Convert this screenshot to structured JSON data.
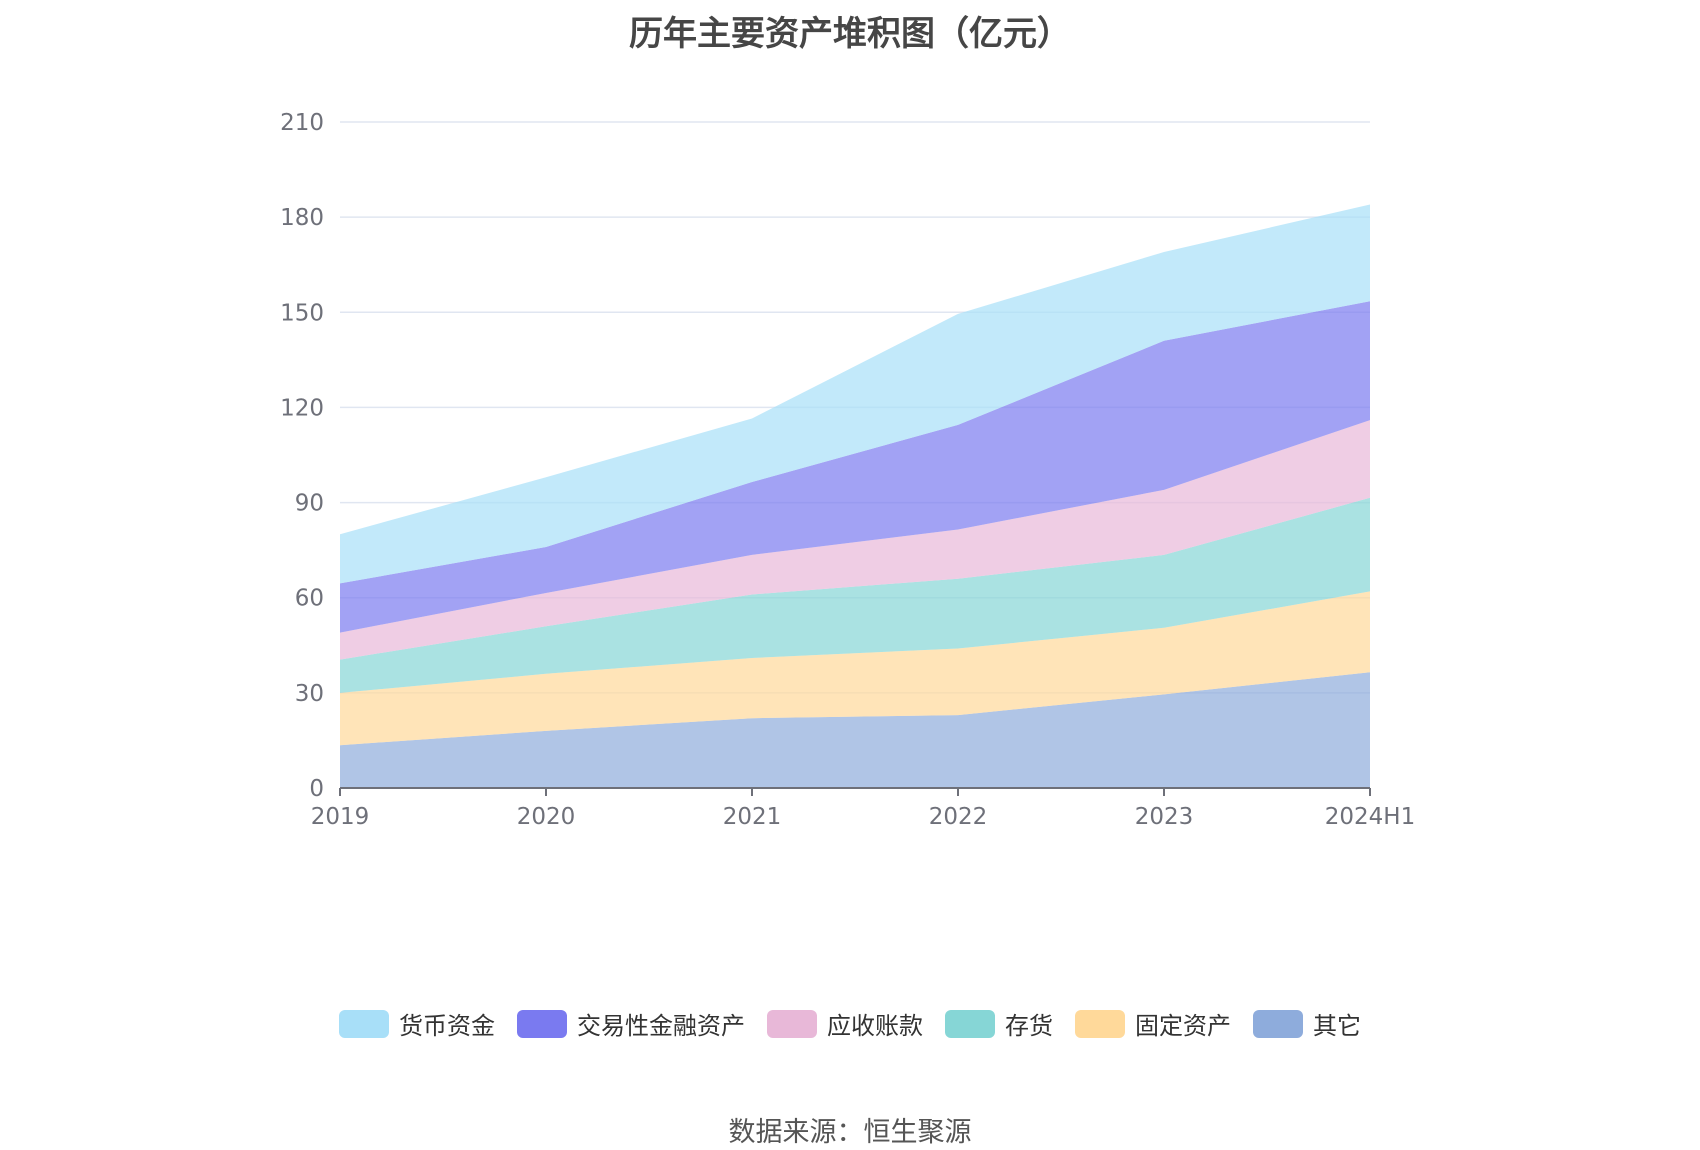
{
  "title": "历年主要资产堆积图（亿元）",
  "source": "数据来源：恒生聚源",
  "chart_data": {
    "type": "area",
    "stacked": true,
    "title": "历年主要资产堆积图（亿元）",
    "xlabel": "",
    "ylabel": "",
    "ylim": [
      0,
      210
    ],
    "yticks": [
      0,
      30,
      60,
      90,
      120,
      150,
      180,
      210
    ],
    "categories": [
      "2019",
      "2020",
      "2021",
      "2022",
      "2023",
      "2024H1"
    ],
    "grid": true,
    "legend_position": "bottom",
    "series": [
      {
        "name": "其它",
        "color": "#8eacdc",
        "values": [
          13.5,
          18,
          22,
          23,
          29.5,
          36.5
        ]
      },
      {
        "name": "固定资产",
        "color": "#ffd99a",
        "values": [
          16.5,
          18,
          19,
          21,
          21,
          25.5
        ]
      },
      {
        "name": "存货",
        "color": "#86d6d6",
        "values": [
          10.5,
          15,
          20,
          22,
          23,
          29.5
        ]
      },
      {
        "name": "应收账款",
        "color": "#e8b8d8",
        "values": [
          8.5,
          10.5,
          12.5,
          15.5,
          20.5,
          24.5
        ]
      },
      {
        "name": "交易性金融资产",
        "color": "#7a7af0",
        "values": [
          15.5,
          14.5,
          23,
          33,
          47,
          37.5
        ]
      },
      {
        "name": "货币资金",
        "color": "#a8dff8",
        "values": [
          15.5,
          22,
          20,
          35,
          28,
          30.5
        ]
      }
    ],
    "legend_order": [
      "货币资金",
      "交易性金融资产",
      "应收账款",
      "存货",
      "固定资产",
      "其它"
    ]
  }
}
